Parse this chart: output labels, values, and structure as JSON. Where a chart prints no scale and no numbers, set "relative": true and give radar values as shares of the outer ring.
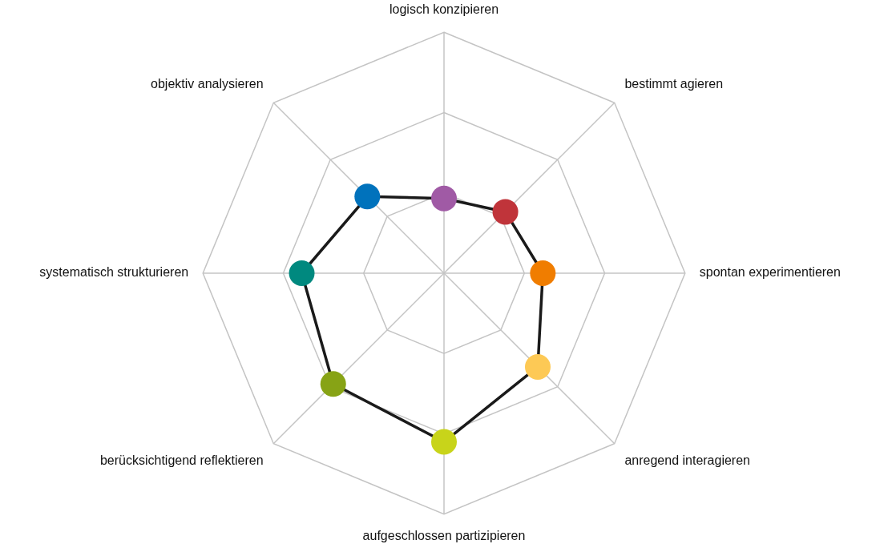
{
  "chart_data": {
    "type": "radar",
    "relative": true,
    "grid": true,
    "legend": false,
    "marker": "circle",
    "line_style": "solid",
    "categories": [
      "logisch konzipieren",
      "bestimmt agieren",
      "spontan experimentieren",
      "anregend interagieren",
      "aufgeschlossen partizipieren",
      "berücksichtigend reflektieren",
      "systematisch strukturieren",
      "objektiv analysieren"
    ],
    "series": [
      {
        "color": "#1a1a1a",
        "colors": [
          "#a05aa5",
          "#c0343a",
          "#f07d00",
          "#fdc955",
          "#c8d41a",
          "#87a315",
          "#00897f",
          "#0072bc"
        ],
        "values": [
          0.31,
          0.36,
          0.41,
          0.55,
          0.7,
          0.65,
          0.59,
          0.45
        ]
      }
    ]
  }
}
